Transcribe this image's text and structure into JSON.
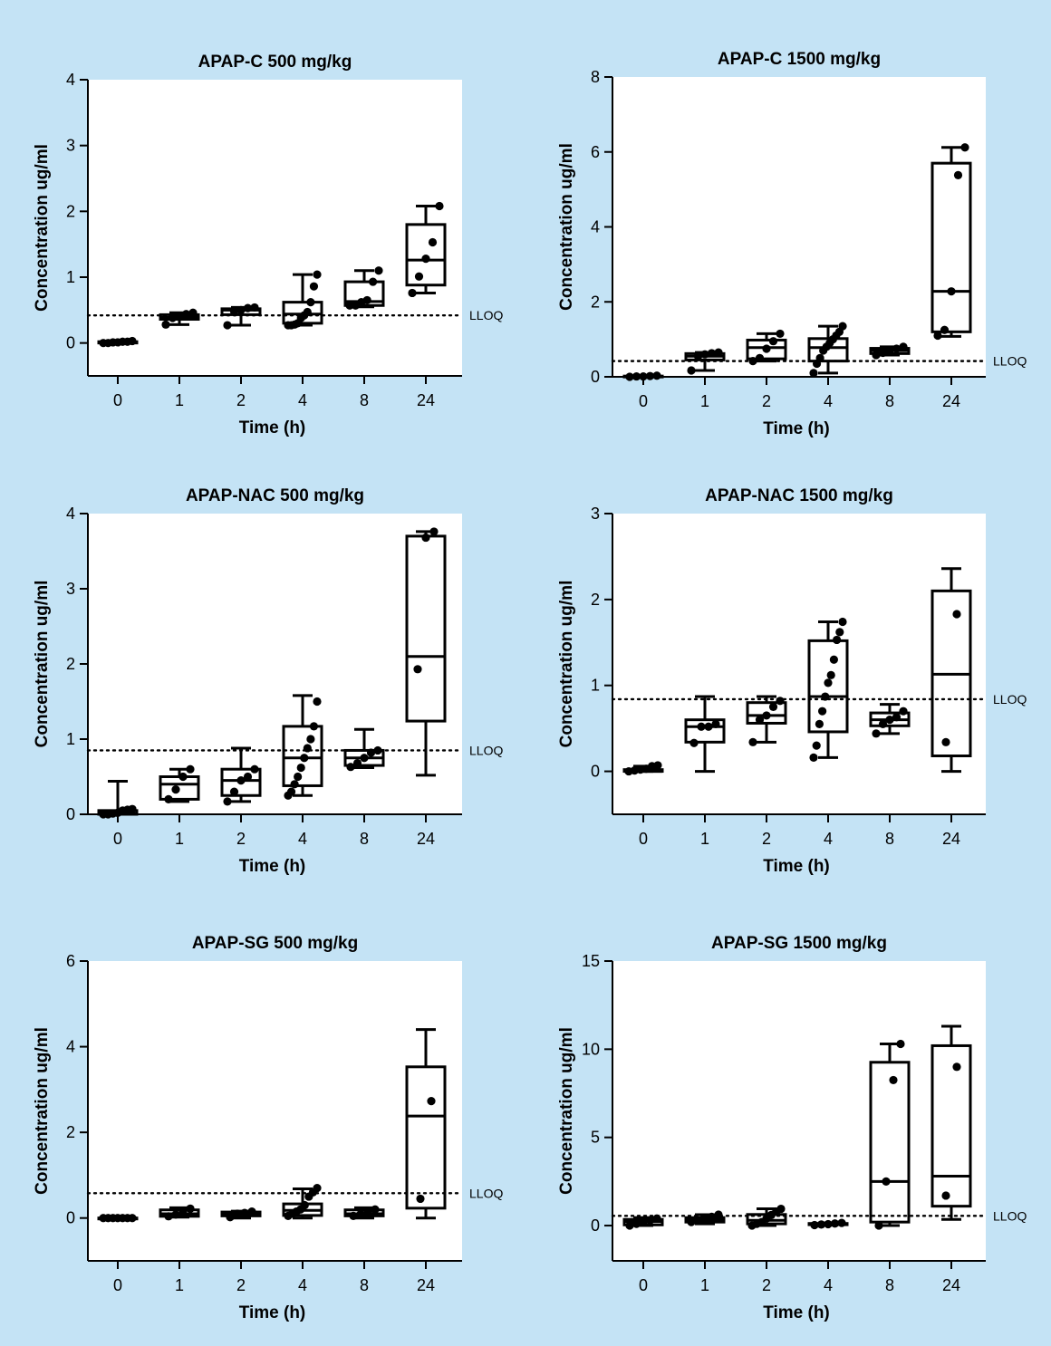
{
  "chart_data": [
    {
      "type": "box",
      "title": "APAP-C 500 mg/kg",
      "xlabel": "Time (h)",
      "ylabel": "Concentration ug/ml",
      "categories": [
        "0",
        "1",
        "2",
        "4",
        "8",
        "24"
      ],
      "ylim": [
        -0.5,
        4
      ],
      "yticks": [
        0,
        1,
        2,
        3,
        4
      ],
      "lloq": {
        "label": "LLOQ",
        "value": 0.42
      },
      "boxes": [
        {
          "min": 0.0,
          "q1": 0.0,
          "median": 0.01,
          "q3": 0.02,
          "max": 0.03,
          "points": [
            0.0,
            0.0,
            0.01,
            0.01,
            0.02,
            0.02,
            0.03
          ]
        },
        {
          "min": 0.28,
          "q1": 0.36,
          "median": 0.39,
          "q3": 0.43,
          "max": 0.46,
          "points": [
            0.28,
            0.38,
            0.4,
            0.44,
            0.46
          ]
        },
        {
          "min": 0.27,
          "q1": 0.43,
          "median": 0.5,
          "q3": 0.52,
          "max": 0.54,
          "points": [
            0.27,
            0.48,
            0.5,
            0.53,
            0.54
          ]
        },
        {
          "min": 0.27,
          "q1": 0.3,
          "median": 0.44,
          "q3": 0.62,
          "max": 1.04,
          "points": [
            0.27,
            0.27,
            0.28,
            0.3,
            0.38,
            0.42,
            0.47,
            0.62,
            0.86,
            1.04
          ]
        },
        {
          "min": 0.55,
          "q1": 0.57,
          "median": 0.63,
          "q3": 0.93,
          "max": 1.1,
          "points": [
            0.57,
            0.57,
            0.62,
            0.65,
            0.93,
            1.1
          ]
        },
        {
          "min": 0.76,
          "q1": 0.88,
          "median": 1.26,
          "q3": 1.8,
          "max": 2.08,
          "points": [
            0.76,
            1.01,
            1.28,
            1.53,
            2.08
          ]
        }
      ]
    },
    {
      "type": "box",
      "title": "APAP-C 1500 mg/kg",
      "xlabel": "Time (h)",
      "ylabel": "Concentration ug/ml",
      "categories": [
        "0",
        "1",
        "2",
        "4",
        "8",
        "24"
      ],
      "ylim": [
        0,
        8
      ],
      "yticks": [
        0,
        2,
        4,
        6,
        8
      ],
      "lloq": {
        "label": "LLOQ",
        "value": 0.42
      },
      "boxes": [
        {
          "min": 0.0,
          "q1": 0.0,
          "median": 0.01,
          "q3": 0.02,
          "max": 0.03,
          "points": [
            0.0,
            0.01,
            0.01,
            0.02,
            0.03
          ]
        },
        {
          "min": 0.17,
          "q1": 0.45,
          "median": 0.55,
          "q3": 0.62,
          "max": 0.65,
          "points": [
            0.17,
            0.55,
            0.6,
            0.63,
            0.65
          ]
        },
        {
          "min": 0.42,
          "q1": 0.48,
          "median": 0.78,
          "q3": 0.98,
          "max": 1.15,
          "points": [
            0.42,
            0.5,
            0.75,
            0.95,
            1.15
          ]
        },
        {
          "min": 0.1,
          "q1": 0.42,
          "median": 0.78,
          "q3": 1.02,
          "max": 1.35,
          "points": [
            0.1,
            0.35,
            0.5,
            0.7,
            0.8,
            0.9,
            1.0,
            1.1,
            1.2,
            1.35
          ]
        },
        {
          "min": 0.58,
          "q1": 0.62,
          "median": 0.7,
          "q3": 0.76,
          "max": 0.8,
          "points": [
            0.58,
            0.64,
            0.7,
            0.75,
            0.8
          ]
        },
        {
          "min": 1.08,
          "q1": 1.2,
          "median": 2.28,
          "q3": 5.7,
          "max": 6.12,
          "points": [
            1.1,
            1.25,
            2.28,
            5.38,
            6.12
          ]
        }
      ]
    },
    {
      "type": "box",
      "title": "APAP-NAC 500 mg/kg",
      "xlabel": "Time (h)",
      "ylabel": "Concentration ug/ml",
      "categories": [
        "0",
        "1",
        "2",
        "4",
        "8",
        "24"
      ],
      "ylim": [
        0,
        4
      ],
      "yticks": [
        0,
        1,
        2,
        3,
        4
      ],
      "lloq": {
        "label": "LLOQ",
        "value": 0.85
      },
      "boxes": [
        {
          "min": 0.0,
          "q1": 0.0,
          "median": 0.01,
          "q3": 0.05,
          "max": 0.44,
          "points": [
            0.0,
            0.0,
            0.01,
            0.02,
            0.05,
            0.06,
            0.07
          ]
        },
        {
          "min": 0.17,
          "q1": 0.2,
          "median": 0.4,
          "q3": 0.5,
          "max": 0.6,
          "points": [
            0.2,
            0.33,
            0.5,
            0.6
          ]
        },
        {
          "min": 0.17,
          "q1": 0.25,
          "median": 0.45,
          "q3": 0.6,
          "max": 0.88,
          "points": [
            0.17,
            0.3,
            0.45,
            0.5,
            0.6
          ]
        },
        {
          "min": 0.25,
          "q1": 0.38,
          "median": 0.75,
          "q3": 1.17,
          "max": 1.58,
          "points": [
            0.25,
            0.3,
            0.4,
            0.5,
            0.62,
            0.75,
            0.88,
            1.0,
            1.17,
            1.5
          ]
        },
        {
          "min": 0.62,
          "q1": 0.65,
          "median": 0.75,
          "q3": 0.85,
          "max": 1.13,
          "points": [
            0.63,
            0.68,
            0.75,
            0.82,
            0.85
          ]
        },
        {
          "min": 0.52,
          "q1": 1.24,
          "median": 2.1,
          "q3": 3.7,
          "max": 3.76,
          "points": [
            1.93,
            3.68,
            3.76
          ]
        }
      ]
    },
    {
      "type": "box",
      "title": "APAP-NAC 1500 mg/kg",
      "xlabel": "Time (h)",
      "ylabel": "Concentration ug/ml",
      "categories": [
        "0",
        "1",
        "2",
        "4",
        "8",
        "24"
      ],
      "ylim": [
        -0.5,
        3
      ],
      "yticks": [
        0,
        1,
        2,
        3
      ],
      "lloq": {
        "label": "LLOQ",
        "value": 0.84
      },
      "boxes": [
        {
          "min": 0.0,
          "q1": 0.0,
          "median": 0.0,
          "q3": 0.02,
          "max": 0.06,
          "points": [
            0.0,
            0.01,
            0.02,
            0.03,
            0.06,
            0.07
          ]
        },
        {
          "min": 0.0,
          "q1": 0.34,
          "median": 0.52,
          "q3": 0.6,
          "max": 0.87,
          "points": [
            0.33,
            0.52,
            0.52,
            0.55
          ]
        },
        {
          "min": 0.34,
          "q1": 0.56,
          "median": 0.65,
          "q3": 0.8,
          "max": 0.87,
          "points": [
            0.34,
            0.6,
            0.65,
            0.75,
            0.82
          ]
        },
        {
          "min": 0.16,
          "q1": 0.46,
          "median": 0.87,
          "q3": 1.52,
          "max": 1.74,
          "points": [
            0.16,
            0.3,
            0.55,
            0.7,
            0.87,
            1.03,
            1.12,
            1.3,
            1.53,
            1.62,
            1.74
          ]
        },
        {
          "min": 0.44,
          "q1": 0.53,
          "median": 0.6,
          "q3": 0.68,
          "max": 0.78,
          "points": [
            0.44,
            0.55,
            0.6,
            0.63,
            0.7
          ]
        },
        {
          "min": 0.0,
          "q1": 0.18,
          "median": 1.13,
          "q3": 2.1,
          "max": 2.36,
          "points": [
            0.34,
            1.83
          ]
        }
      ]
    },
    {
      "type": "box",
      "title": "APAP-SG 500 mg/kg",
      "xlabel": "Time (h)",
      "ylabel": "Concentration ug/ml",
      "categories": [
        "0",
        "1",
        "2",
        "4",
        "8",
        "24"
      ],
      "ylim": [
        -1,
        6
      ],
      "yticks": [
        0,
        2,
        4,
        6
      ],
      "lloq": {
        "label": "LLOQ",
        "value": 0.58
      },
      "boxes": [
        {
          "min": 0.0,
          "q1": 0.0,
          "median": 0.0,
          "q3": 0.0,
          "max": 0.0,
          "points": [
            0.0,
            0.0,
            0.0,
            0.0,
            0.0,
            0.0,
            0.0
          ]
        },
        {
          "min": 0.02,
          "q1": 0.04,
          "median": 0.1,
          "q3": 0.19,
          "max": 0.24,
          "points": [
            0.04,
            0.08,
            0.16,
            0.22
          ]
        },
        {
          "min": 0.0,
          "q1": 0.05,
          "median": 0.1,
          "q3": 0.14,
          "max": 0.16,
          "points": [
            0.02,
            0.1,
            0.12,
            0.15
          ]
        },
        {
          "min": 0.0,
          "q1": 0.06,
          "median": 0.18,
          "q3": 0.33,
          "max": 0.68,
          "points": [
            0.05,
            0.1,
            0.15,
            0.2,
            0.3,
            0.5,
            0.6,
            0.7
          ]
        },
        {
          "min": 0.0,
          "q1": 0.05,
          "median": 0.1,
          "q3": 0.19,
          "max": 0.24,
          "points": [
            0.05,
            0.09,
            0.15,
            0.2
          ]
        },
        {
          "min": 0.0,
          "q1": 0.23,
          "median": 2.38,
          "q3": 3.53,
          "max": 4.4,
          "points": [
            0.45,
            2.73
          ]
        }
      ]
    },
    {
      "type": "box",
      "title": "APAP-SG 1500 mg/kg",
      "xlabel": "Time (h)",
      "ylabel": "Concentration ug/ml",
      "categories": [
        "0",
        "1",
        "2",
        "4",
        "8",
        "24"
      ],
      "ylim": [
        -2,
        15
      ],
      "yticks": [
        0,
        5,
        10,
        15
      ],
      "lloq": {
        "label": "LLOQ",
        "value": 0.55
      },
      "boxes": [
        {
          "min": 0.0,
          "q1": 0.04,
          "median": 0.23,
          "q3": 0.35,
          "max": 0.45,
          "points": [
            0.0,
            0.1,
            0.2,
            0.3,
            0.4
          ]
        },
        {
          "min": 0.1,
          "q1": 0.2,
          "median": 0.34,
          "q3": 0.45,
          "max": 0.62,
          "points": [
            0.2,
            0.3,
            0.4,
            0.5,
            0.62
          ]
        },
        {
          "min": 0.0,
          "q1": 0.1,
          "median": 0.3,
          "q3": 0.63,
          "max": 0.95,
          "points": [
            0.0,
            0.1,
            0.2,
            0.4,
            0.6,
            0.8,
            0.95
          ]
        },
        {
          "min": 0.03,
          "q1": 0.05,
          "median": 0.08,
          "q3": 0.12,
          "max": 0.15,
          "points": [
            0.03,
            0.06,
            0.08,
            0.12,
            0.15
          ]
        },
        {
          "min": 0.0,
          "q1": 0.2,
          "median": 2.5,
          "q3": 9.26,
          "max": 10.3,
          "points": [
            0.0,
            2.5,
            8.25,
            10.3
          ]
        },
        {
          "min": 0.35,
          "q1": 1.1,
          "median": 2.8,
          "q3": 10.2,
          "max": 11.3,
          "points": [
            1.7,
            9.0
          ]
        }
      ]
    }
  ]
}
